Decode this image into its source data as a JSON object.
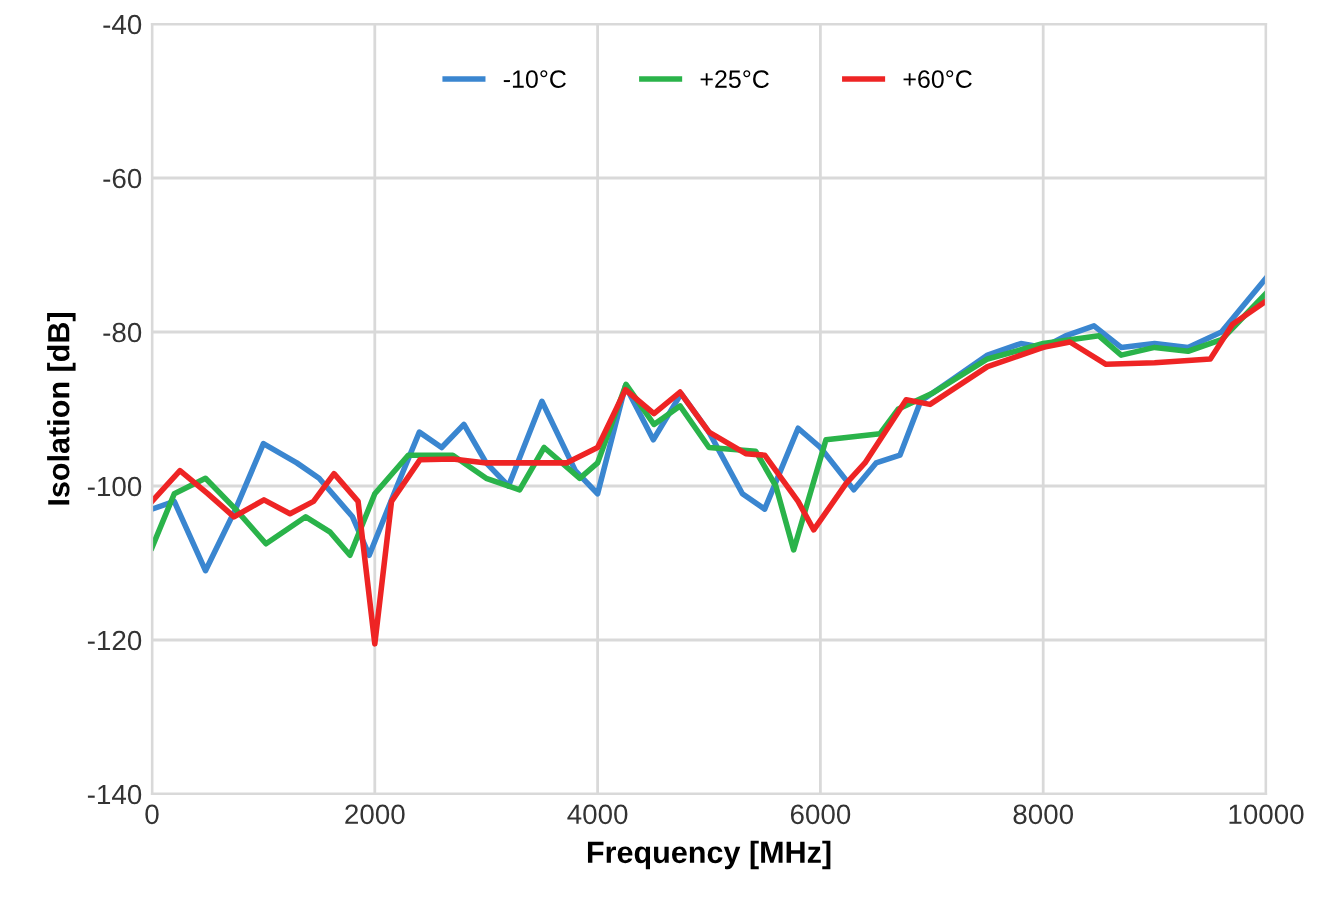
{
  "chart_data": {
    "type": "line",
    "xlabel": "Frequency [MHz]",
    "ylabel": "Isolation [dB]",
    "xlim": [
      0,
      10000
    ],
    "ylim": [
      -140,
      -40
    ],
    "xticks": [
      0,
      2000,
      4000,
      6000,
      8000,
      10000
    ],
    "yticks": [
      -140,
      -120,
      -100,
      -80,
      -60,
      -40
    ],
    "grid": true,
    "legend": "top",
    "marker": "none",
    "line_style": "solid",
    "series": [
      {
        "name": "-10°C",
        "color": "#3a86d0",
        "x": [
          0,
          200,
          480,
          750,
          1000,
          1300,
          1500,
          1800,
          1950,
          2200,
          2400,
          2600,
          2800,
          3000,
          3200,
          3500,
          3800,
          4000,
          4250,
          4500,
          4750,
          5000,
          5300,
          5500,
          5800,
          6000,
          6300,
          6500,
          6714,
          6900,
          7200,
          7500,
          7800,
          8000,
          8200,
          8456,
          8700,
          9000,
          9300,
          9600,
          10000
        ],
        "values": [
          -103,
          -102,
          -111,
          -103,
          -94.5,
          -97,
          -99,
          -104,
          -109,
          -100,
          -93,
          -95,
          -92,
          -97,
          -100,
          -89,
          -98,
          -101,
          -87,
          -94,
          -88,
          -93,
          -101,
          -103,
          -92.5,
          -95,
          -100.5,
          -97,
          -96,
          -89,
          -86,
          -83,
          -81.5,
          -82,
          -80.5,
          -79.2,
          -82,
          -81.5,
          -82,
          -80,
          -73
        ]
      },
      {
        "name": "+25°C",
        "color": "#2ab34a",
        "x": [
          0,
          200,
          480,
          750,
          1023,
          1380,
          1600,
          1777,
          2000,
          2300,
          2700,
          3000,
          3300,
          3520,
          3840,
          4000,
          4255,
          4506,
          4740,
          5000,
          5420,
          5600,
          5760,
          6050,
          6535,
          6700,
          7000,
          7500,
          8000,
          8500,
          8700,
          9000,
          9300,
          9600,
          10000
        ],
        "values": [
          -108,
          -101,
          -99,
          -103,
          -107.5,
          -104,
          -106,
          -109,
          -101,
          -96,
          -96,
          -99,
          -100.5,
          -95,
          -99,
          -97,
          -86.8,
          -92,
          -89.6,
          -95,
          -95.5,
          -100,
          -108.3,
          -94,
          -93.2,
          -90,
          -88,
          -83.5,
          -81.5,
          -80.5,
          -83,
          -82,
          -82.5,
          -81,
          -75
        ]
      },
      {
        "name": "+60°C",
        "color": "#ee2424",
        "x": [
          0,
          251,
          500,
          736,
          1005,
          1239,
          1450,
          1634,
          1850,
          2000,
          2150,
          2405,
          2700,
          3000,
          3500,
          3720,
          4000,
          4250,
          4506,
          4740,
          5000,
          5330,
          5500,
          5800,
          5940,
          6230,
          6400,
          6770,
          6984,
          7500,
          8000,
          8240,
          8564,
          9000,
          9500,
          9700,
          10000
        ],
        "values": [
          -102,
          -98,
          -101,
          -104,
          -101.8,
          -103.6,
          -102,
          -98.4,
          -102,
          -120.5,
          -102,
          -96.6,
          -96.5,
          -97,
          -97,
          -97,
          -95,
          -87.5,
          -90.6,
          -87.8,
          -93,
          -95.8,
          -96,
          -102,
          -105.7,
          -99.7,
          -97,
          -88.8,
          -89.4,
          -84.5,
          -82,
          -81.3,
          -84.2,
          -84,
          -83.5,
          -79,
          -76
        ]
      }
    ]
  }
}
